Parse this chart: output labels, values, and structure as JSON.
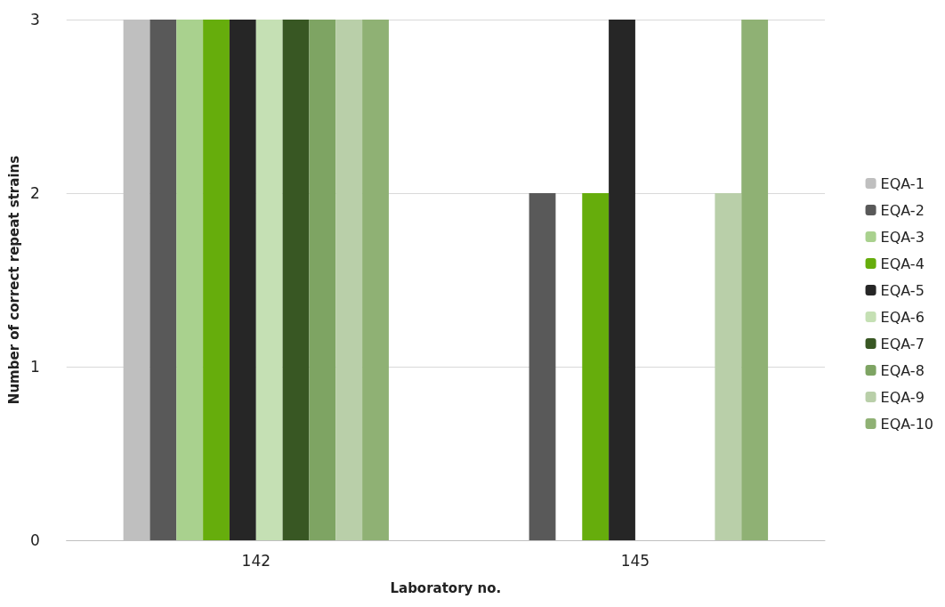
{
  "chart_data": {
    "type": "bar",
    "xlabel": "Laboratory no.",
    "ylabel": "Number of correct repeat strains",
    "categories": [
      "142",
      "145"
    ],
    "ylim": [
      0,
      3
    ],
    "yticks": [
      0,
      1,
      2,
      3
    ],
    "grid": "y",
    "legend": "right",
    "series": [
      {
        "name": "EQA-1",
        "color": "#bfbfbf",
        "values": [
          3,
          0
        ]
      },
      {
        "name": "EQA-2",
        "color": "#595959",
        "values": [
          3,
          2
        ]
      },
      {
        "name": "EQA-3",
        "color": "#a9d18e",
        "values": [
          3,
          0
        ]
      },
      {
        "name": "EQA-4",
        "color": "#66ad0c",
        "values": [
          3,
          2
        ]
      },
      {
        "name": "EQA-5",
        "color": "#262626",
        "values": [
          3,
          3
        ]
      },
      {
        "name": "EQA-6",
        "color": "#c5e0b4",
        "values": [
          3,
          0
        ]
      },
      {
        "name": "EQA-7",
        "color": "#385723",
        "values": [
          3,
          0
        ]
      },
      {
        "name": "EQA-8",
        "color": "#7ea463",
        "values": [
          3,
          0
        ]
      },
      {
        "name": "EQA-9",
        "color": "#b9cfa9",
        "values": [
          3,
          2
        ]
      },
      {
        "name": "EQA-10",
        "color": "#8fb174",
        "values": [
          3,
          3
        ]
      }
    ]
  }
}
